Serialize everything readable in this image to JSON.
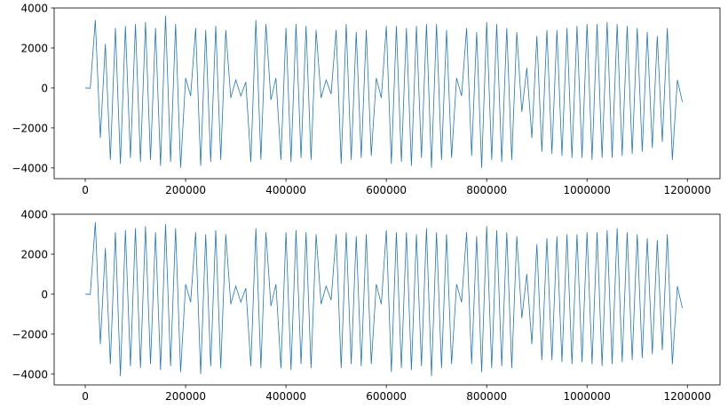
{
  "chart_data": [
    {
      "type": "line",
      "x": [
        0,
        10000,
        20000,
        30000,
        40000,
        50000,
        60000,
        70000,
        80000,
        90000,
        100000,
        110000,
        120000,
        130000,
        140000,
        150000,
        160000,
        170000,
        180000,
        190000,
        200000,
        210000,
        220000,
        230000,
        240000,
        250000,
        260000,
        270000,
        280000,
        290000,
        300000,
        310000,
        320000,
        330000,
        340000,
        350000,
        360000,
        370000,
        380000,
        390000,
        400000,
        410000,
        420000,
        430000,
        440000,
        450000,
        460000,
        470000,
        480000,
        490000,
        500000,
        510000,
        520000,
        530000,
        540000,
        550000,
        560000,
        570000,
        580000,
        590000,
        600000,
        610000,
        620000,
        630000,
        640000,
        650000,
        660000,
        670000,
        680000,
        690000,
        700000,
        710000,
        720000,
        730000,
        740000,
        750000,
        760000,
        770000,
        780000,
        790000,
        800000,
        810000,
        820000,
        830000,
        840000,
        850000,
        860000,
        870000,
        880000,
        890000,
        900000,
        910000,
        920000,
        930000,
        940000,
        950000,
        960000,
        970000,
        980000,
        990000,
        1000000,
        1010000,
        1020000,
        1030000,
        1040000,
        1050000,
        1060000,
        1070000,
        1080000,
        1090000,
        1100000,
        1110000,
        1120000,
        1130000,
        1140000,
        1150000,
        1160000,
        1170000,
        1180000,
        1190000
      ],
      "series": [
        {
          "color": "#1f77b4",
          "values": [
            0,
            -10,
            3400,
            -2500,
            2200,
            -3600,
            3000,
            -3800,
            3100,
            -3500,
            3200,
            -3700,
            3300,
            -3600,
            3000,
            -3900,
            3600,
            -3700,
            3200,
            -4000,
            500,
            -400,
            3000,
            -3900,
            2900,
            -3700,
            3100,
            -3600,
            2900,
            -500,
            400,
            -400,
            300,
            -3700,
            3400,
            -3600,
            3200,
            -600,
            500,
            -3600,
            3000,
            -3700,
            3200,
            -3500,
            3100,
            -3600,
            2900,
            -500,
            400,
            -300,
            2900,
            -3800,
            3200,
            -3600,
            2800,
            -3500,
            2900,
            -3400,
            500,
            -500,
            3100,
            -3800,
            3100,
            -3700,
            3000,
            -3900,
            3100,
            -3500,
            3200,
            -4000,
            3200,
            -3600,
            2900,
            -3500,
            500,
            -400,
            3000,
            -3400,
            2800,
            -4000,
            3300,
            -3600,
            3200,
            -3700,
            3000,
            -3600,
            2800,
            -1200,
            1000,
            -2500,
            2600,
            -3200,
            2900,
            -3300,
            2900,
            -3400,
            3000,
            -3500,
            3100,
            -3500,
            3200,
            -3600,
            3200,
            -3500,
            3300,
            -3500,
            3200,
            -3400,
            3100,
            -3300,
            3000,
            -3200,
            2800,
            -3000,
            2600,
            -2700,
            3000,
            -3600,
            400,
            -700
          ]
        }
      ],
      "xlim": [
        -62000,
        1265000
      ],
      "ylim": [
        -4540,
        4000
      ],
      "xticks": [
        0,
        200000,
        400000,
        600000,
        800000,
        1000000,
        1200000
      ],
      "yticks": [
        {
          "value": -4000,
          "label": "−4000"
        },
        {
          "value": -2000,
          "label": "−2000"
        },
        0,
        2000,
        4000
      ]
    },
    {
      "type": "line",
      "x": [
        0,
        10000,
        20000,
        30000,
        40000,
        50000,
        60000,
        70000,
        80000,
        90000,
        100000,
        110000,
        120000,
        130000,
        140000,
        150000,
        160000,
        170000,
        180000,
        190000,
        200000,
        210000,
        220000,
        230000,
        240000,
        250000,
        260000,
        270000,
        280000,
        290000,
        300000,
        310000,
        320000,
        330000,
        340000,
        350000,
        360000,
        370000,
        380000,
        390000,
        400000,
        410000,
        420000,
        430000,
        440000,
        450000,
        460000,
        470000,
        480000,
        490000,
        500000,
        510000,
        520000,
        530000,
        540000,
        550000,
        560000,
        570000,
        580000,
        590000,
        600000,
        610000,
        620000,
        630000,
        640000,
        650000,
        660000,
        670000,
        680000,
        690000,
        700000,
        710000,
        720000,
        730000,
        740000,
        750000,
        760000,
        770000,
        780000,
        790000,
        800000,
        810000,
        820000,
        830000,
        840000,
        850000,
        860000,
        870000,
        880000,
        890000,
        900000,
        910000,
        920000,
        930000,
        940000,
        950000,
        960000,
        970000,
        980000,
        990000,
        1000000,
        1010000,
        1020000,
        1030000,
        1040000,
        1050000,
        1060000,
        1070000,
        1080000,
        1090000,
        1100000,
        1110000,
        1120000,
        1130000,
        1140000,
        1150000,
        1160000,
        1170000,
        1180000,
        1190000
      ],
      "series": [
        {
          "color": "#1f77b4",
          "values": [
            0,
            -10,
            3600,
            -2500,
            2300,
            -3500,
            3100,
            -4100,
            3200,
            -3600,
            3300,
            -3700,
            3400,
            -3500,
            3100,
            -3800,
            3500,
            -3600,
            3300,
            -3900,
            500,
            -400,
            3100,
            -4000,
            3000,
            -3600,
            3200,
            -3700,
            3000,
            -500,
            400,
            -400,
            300,
            -3600,
            3300,
            -3700,
            3100,
            -600,
            500,
            -3700,
            3100,
            -3800,
            3200,
            -3500,
            3100,
            -3700,
            3000,
            -500,
            400,
            -300,
            3000,
            -3700,
            3100,
            -3500,
            2900,
            -3600,
            3000,
            -3500,
            500,
            -500,
            3200,
            -3900,
            3100,
            -3700,
            3100,
            -3800,
            3000,
            -3600,
            3300,
            -4100,
            3100,
            -3700,
            3000,
            -3500,
            500,
            -400,
            3100,
            -3500,
            2900,
            -3900,
            3400,
            -3700,
            3200,
            -3600,
            3100,
            -3700,
            2900,
            -1200,
            1000,
            -2500,
            2500,
            -3300,
            2800,
            -3300,
            2900,
            -3400,
            3000,
            -3500,
            3000,
            -3400,
            3100,
            -3500,
            3100,
            -3600,
            3200,
            -3500,
            3300,
            -3400,
            3100,
            -3300,
            3000,
            -3200,
            2800,
            -3000,
            2700,
            -2800,
            3000,
            -3500,
            400,
            -700
          ]
        }
      ],
      "xlim": [
        -62000,
        1265000
      ],
      "ylim": [
        -4540,
        4000
      ],
      "xticks": [
        0,
        200000,
        400000,
        600000,
        800000,
        1000000,
        1200000
      ],
      "yticks": [
        {
          "value": -4000,
          "label": "−4000"
        },
        {
          "value": -2000,
          "label": "−2000"
        },
        0,
        2000,
        4000
      ]
    }
  ]
}
